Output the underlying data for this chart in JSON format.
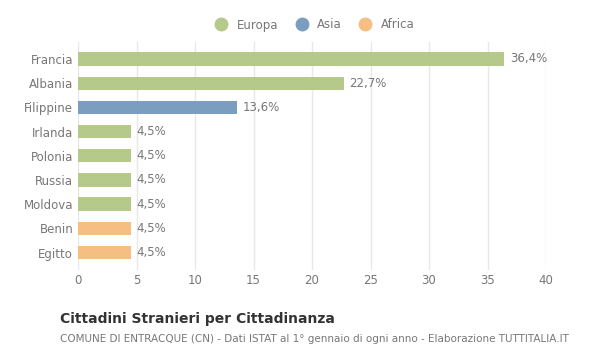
{
  "countries": [
    "Francia",
    "Albania",
    "Filippine",
    "Irlanda",
    "Polonia",
    "Russia",
    "Moldova",
    "Benin",
    "Egitto"
  ],
  "values": [
    36.4,
    22.7,
    13.6,
    4.5,
    4.5,
    4.5,
    4.5,
    4.5,
    4.5
  ],
  "labels": [
    "36,4%",
    "22,7%",
    "13,6%",
    "4,5%",
    "4,5%",
    "4,5%",
    "4,5%",
    "4,5%",
    "4,5%"
  ],
  "continents": [
    "Europa",
    "Europa",
    "Asia",
    "Europa",
    "Europa",
    "Europa",
    "Europa",
    "Africa",
    "Africa"
  ],
  "colors": {
    "Europa": "#b5c98a",
    "Asia": "#7b9ec0",
    "Africa": "#f5be82"
  },
  "legend_order": [
    "Europa",
    "Asia",
    "Africa"
  ],
  "xlim": [
    0,
    40
  ],
  "xticks": [
    0,
    5,
    10,
    15,
    20,
    25,
    30,
    35,
    40
  ],
  "title": "Cittadini Stranieri per Cittadinanza",
  "subtitle": "COMUNE DI ENTRACQUE (CN) - Dati ISTAT al 1° gennaio di ogni anno - Elaborazione TUTTITALIA.IT",
  "background_color": "#ffffff",
  "grid_color": "#e8e8e8",
  "bar_height": 0.55,
  "label_fontsize": 8.5,
  "tick_fontsize": 8.5,
  "title_fontsize": 10,
  "subtitle_fontsize": 7.5
}
